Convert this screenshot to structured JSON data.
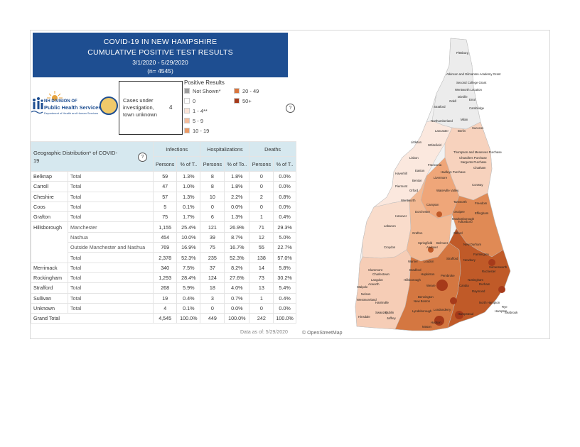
{
  "title": {
    "line1": "COVID-19 IN NEW HAMPSHIRE",
    "line2": "CUMULATIVE POSITIVE TEST RESULTS",
    "dates": "3/1/2020 - 5/29/2020",
    "n": "(n= 4545)"
  },
  "logo": {
    "line1": "NH DIVISION OF",
    "line2": "Public Health Services",
    "line3": "Department of Health and Human Services"
  },
  "cases": {
    "label": "Cases under investigation, town unknown",
    "value": "4"
  },
  "legend": {
    "title": "Positive Results",
    "items": [
      {
        "label": "Not Shown*",
        "color": "#9e9e9e"
      },
      {
        "label": "0",
        "color": "#ffffff"
      },
      {
        "label": "1 - 4**",
        "color": "#fbe3d6"
      },
      {
        "label": "5 - 9",
        "color": "#f5bc9b"
      },
      {
        "label": "10 - 19",
        "color": "#eb9a66"
      },
      {
        "label": "20 - 49",
        "color": "#d9753d"
      },
      {
        "label": "50+",
        "color": "#a63a1a"
      }
    ]
  },
  "help_icon": "?",
  "table": {
    "header_geo": "Geographic Distribution* of COVID-19",
    "groups": [
      "Infections",
      "Hospitalizations",
      "Deaths"
    ],
    "subheaders": [
      "Persons",
      "% of T..",
      "Persons",
      "% of To..",
      "Persons",
      "% of T.."
    ],
    "rows": [
      {
        "county": "Belknap",
        "sub": "Total",
        "v": [
          "59",
          "1.3%",
          "8",
          "1.8%",
          "0",
          "0.0%"
        ]
      },
      {
        "county": "Carroll",
        "sub": "Total",
        "v": [
          "47",
          "1.0%",
          "8",
          "1.8%",
          "0",
          "0.0%"
        ]
      },
      {
        "county": "Cheshire",
        "sub": "Total",
        "v": [
          "57",
          "1.3%",
          "10",
          "2.2%",
          "2",
          "0.8%"
        ]
      },
      {
        "county": "Coos",
        "sub": "Total",
        "v": [
          "5",
          "0.1%",
          "0",
          "0.0%",
          "0",
          "0.0%"
        ]
      },
      {
        "county": "Grafton",
        "sub": "Total",
        "v": [
          "75",
          "1.7%",
          "6",
          "1.3%",
          "1",
          "0.4%"
        ]
      },
      {
        "county": "Hillsborough",
        "sub": "Manchester",
        "v": [
          "1,155",
          "25.4%",
          "121",
          "26.9%",
          "71",
          "29.3%"
        ]
      },
      {
        "county": "",
        "sub": "Nashua",
        "v": [
          "454",
          "10.0%",
          "39",
          "8.7%",
          "12",
          "5.0%"
        ]
      },
      {
        "county": "",
        "sub": "Outside Manchester and Nashua",
        "v": [
          "769",
          "16.9%",
          "75",
          "16.7%",
          "55",
          "22.7%"
        ]
      },
      {
        "county": "",
        "sub": "Total",
        "v": [
          "2,378",
          "52.3%",
          "235",
          "52.3%",
          "138",
          "57.0%"
        ]
      },
      {
        "county": "Merrimack",
        "sub": "Total",
        "v": [
          "340",
          "7.5%",
          "37",
          "8.2%",
          "14",
          "5.8%"
        ]
      },
      {
        "county": "Rockingham",
        "sub": "Total",
        "v": [
          "1,293",
          "28.4%",
          "124",
          "27.6%",
          "73",
          "30.2%"
        ]
      },
      {
        "county": "Strafford",
        "sub": "Total",
        "v": [
          "268",
          "5.9%",
          "18",
          "4.0%",
          "13",
          "5.4%"
        ]
      },
      {
        "county": "Sullivan",
        "sub": "Total",
        "v": [
          "19",
          "0.4%",
          "3",
          "0.7%",
          "1",
          "0.4%"
        ]
      },
      {
        "county": "Unknown",
        "sub": "Total",
        "v": [
          "4",
          "0.1%",
          "0",
          "0.0%",
          "0",
          "0.0%"
        ]
      }
    ],
    "grand_total": {
      "label": "Grand Total",
      "v": [
        "4,545",
        "100.0%",
        "449",
        "100.0%",
        "242",
        "100.0%"
      ]
    }
  },
  "footer": {
    "data_as_of": "Data as of:  5/29/2020",
    "osm": "© OpenStreetMap"
  },
  "map": {
    "towns": [
      "Pittsburg",
      "Atkinson and Gilmanton Academy Grant",
      "Second College Grant",
      "Wentworth Location",
      "Errol",
      "Cambridge",
      "Milan",
      "Berlin",
      "Success",
      "Northumberland",
      "Stratford",
      "Lancaster",
      "Odell",
      "Dixville",
      "Littleton",
      "Whitefield",
      "Thompson and Meserves Purchase",
      "Chandlers Purchase",
      "Sargents Purchase",
      "Chatham",
      "Lisbon",
      "Franconia",
      "Easton",
      "Hadleys Purchase",
      "Benton",
      "Livermore",
      "Haverhill",
      "Piermont",
      "Orford",
      "Waterville Valley",
      "Conway",
      "Tamworth",
      "Freedom",
      "Wentworth",
      "Dorchester",
      "Campton",
      "Ossipee",
      "Effingham",
      "Hanover",
      "Lebanon",
      "Grafton",
      "Moultonborough",
      "Springfield",
      "Tuftonboro",
      "New Durham",
      "Croydon",
      "Andover",
      "Belmont",
      "Gilford",
      "Farmington",
      "Newbury",
      "Warner",
      "Loudon",
      "Strafford",
      "Rochester",
      "Somersworth",
      "Claremont",
      "Charlestown",
      "Bradford",
      "Hopkinton",
      "Pembroke",
      "Durham",
      "Acworth",
      "Langdon",
      "Hillsborough",
      "Weare",
      "Candia",
      "Nottingham",
      "Walpole",
      "Nelson",
      "Bennington",
      "Raymond",
      "Westmoreland",
      "New Boston",
      "North Hampton",
      "Harrisville",
      "Lyndeborough",
      "Rye",
      "Swanzey",
      "Dublin",
      "Hampton",
      "Seabrook",
      "Hinsdale",
      "Jaffrey",
      "Londonderry",
      "Hampstead",
      "Mason",
      "Hudson"
    ]
  }
}
